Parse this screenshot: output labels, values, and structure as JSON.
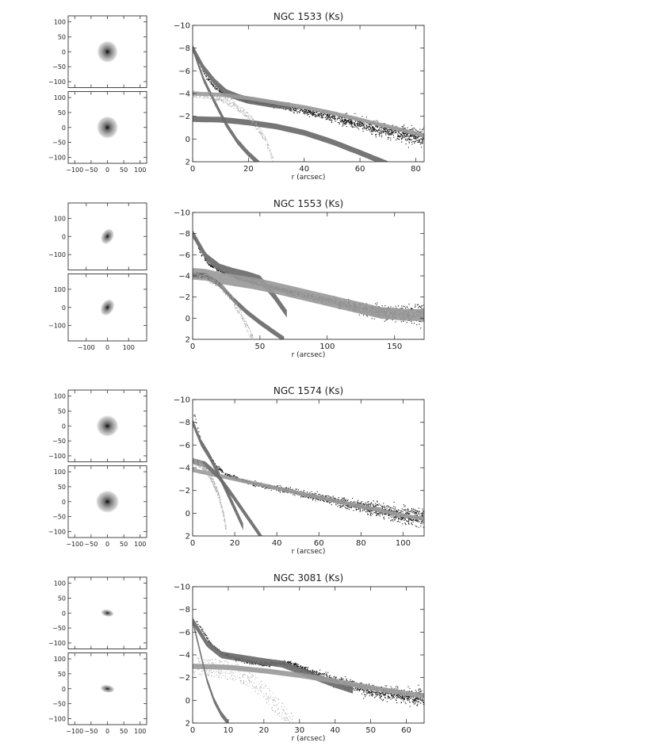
{
  "chart_data": [
    {
      "type": "scatter",
      "title": "NGC 1533 (Ks)",
      "xlabel": "r (arcsec)",
      "ylabel": "",
      "xlim": [
        0,
        83
      ],
      "ylim": [
        2,
        -10
      ],
      "xticks": [
        0,
        20,
        40,
        60,
        80
      ],
      "yticks": [
        -10,
        -8,
        -6,
        -4,
        -2,
        0,
        2
      ],
      "image_axis": {
        "lim": [
          -120,
          120
        ],
        "ticks": [
          -100,
          -50,
          0,
          50,
          100
        ]
      },
      "image_panels": [
        {
          "name": "observed image",
          "rx": 32,
          "ry": 37
        },
        {
          "name": "model image",
          "rx": 33,
          "ry": 38
        }
      ],
      "series": [
        {
          "kind": "data",
          "x": [
            1,
            3,
            5,
            8,
            12,
            18,
            25,
            32,
            40,
            48,
            56,
            64,
            72,
            78,
            82
          ],
          "y": [
            -7.6,
            -6.4,
            -5.4,
            -4.5,
            -3.9,
            -3.5,
            -3.2,
            -2.9,
            -2.5,
            -2.1,
            -1.6,
            -1.1,
            -0.6,
            -0.3,
            -0.2
          ]
        },
        {
          "kind": "band",
          "label": "",
          "x": [
            0,
            4,
            8,
            12,
            16,
            20,
            25,
            30,
            35
          ],
          "y": [
            -8.0,
            -6.2,
            -5.0,
            -4.1,
            -3.7,
            -3.4,
            -3.2,
            -3.0,
            -2.9
          ],
          "width": 0.6
        },
        {
          "kind": "band",
          "label": "",
          "x": [
            0,
            10,
            20,
            30,
            40,
            50,
            60,
            70,
            80,
            83
          ],
          "y": [
            -4.0,
            -3.9,
            -3.6,
            -3.2,
            -2.8,
            -2.3,
            -1.7,
            -1.1,
            -0.5,
            -0.3
          ],
          "width": 0.35
        },
        {
          "kind": "band",
          "label": "",
          "x": [
            0,
            10,
            20,
            30,
            40,
            50,
            60,
            70
          ],
          "y": [
            -1.75,
            -1.7,
            -1.45,
            -1.1,
            -0.55,
            0.25,
            1.2,
            2.2
          ],
          "width": 0.5
        },
        {
          "kind": "band",
          "label": "",
          "x": [
            0,
            4,
            8,
            12,
            16,
            20,
            24
          ],
          "y": [
            -8.0,
            -5.2,
            -3.2,
            -1.3,
            0.2,
            1.3,
            2.2
          ],
          "width": 0.5
        },
        {
          "kind": "dots",
          "label": "",
          "x": [
            0,
            6,
            12,
            16,
            20,
            24,
            27,
            29
          ],
          "y": [
            -4.0,
            -3.85,
            -3.4,
            -2.8,
            -2.0,
            -0.8,
            0.6,
            2.0
          ],
          "width": 0.6
        }
      ]
    },
    {
      "type": "scatter",
      "title": "NGC 1553 (Ks)",
      "xlabel": "r (arcsec)",
      "ylabel": "",
      "xlim": [
        0,
        172
      ],
      "ylim": [
        2,
        -10
      ],
      "xticks": [
        0,
        50,
        100,
        150
      ],
      "yticks": [
        -10,
        -8,
        -6,
        -4,
        -2,
        0,
        2
      ],
      "image_axis": {
        "lim": [
          -185,
          185
        ],
        "ticks": [
          -100,
          0,
          100
        ]
      },
      "image_panels": [
        {
          "name": "observed image",
          "rx": 28,
          "ry": 46,
          "rot": 30
        },
        {
          "name": "model image",
          "rx": 30,
          "ry": 49,
          "rot": 30
        }
      ],
      "series": [
        {
          "kind": "data",
          "x": [
            2,
            6,
            12,
            20,
            30,
            45,
            60,
            80,
            100,
            120,
            140,
            160,
            170
          ],
          "y": [
            -7.5,
            -6.1,
            -5.1,
            -4.5,
            -4.0,
            -3.4,
            -2.9,
            -2.3,
            -1.7,
            -1.1,
            -0.6,
            -0.4,
            -0.4
          ]
        },
        {
          "kind": "band",
          "label": "",
          "x": [
            0,
            10,
            20,
            30,
            40,
            50,
            60,
            70
          ],
          "y": [
            -8.0,
            -5.8,
            -4.8,
            -4.4,
            -4.1,
            -3.7,
            -2.2,
            -0.4
          ],
          "width": 0.7
        },
        {
          "kind": "band",
          "label": "",
          "x": [
            0,
            10,
            20,
            30,
            45,
            60,
            80,
            100,
            120,
            140,
            160,
            172
          ],
          "y": [
            -4.2,
            -4.1,
            -3.8,
            -3.6,
            -3.3,
            -2.9,
            -2.3,
            -1.7,
            -1.1,
            -0.5,
            -0.3,
            -0.3
          ],
          "width": 1.1
        },
        {
          "kind": "band",
          "label": "",
          "x": [
            0,
            10,
            20,
            30,
            40,
            50,
            60,
            68
          ],
          "y": [
            -4.1,
            -4.0,
            -3.2,
            -1.8,
            -0.6,
            0.4,
            1.3,
            2.0
          ],
          "width": 0.5
        },
        {
          "kind": "dots",
          "label": "",
          "x": [
            0,
            10,
            20,
            28,
            35,
            40,
            45
          ],
          "y": [
            -4.1,
            -3.9,
            -3.2,
            -2.0,
            -0.6,
            0.8,
            2.0
          ],
          "width": 0.7
        }
      ]
    },
    {
      "type": "scatter",
      "title": "NGC 1574 (Ks)",
      "xlabel": "r (arcsec)",
      "ylabel": "",
      "xlim": [
        0,
        110
      ],
      "ylim": [
        2,
        -10
      ],
      "xticks": [
        0,
        20,
        40,
        60,
        80,
        100
      ],
      "yticks": [
        -10,
        -8,
        -6,
        -4,
        -2,
        0,
        2
      ],
      "image_axis": {
        "lim": [
          -120,
          120
        ],
        "ticks": [
          -100,
          -50,
          0,
          50,
          100
        ]
      },
      "image_panels": [
        {
          "name": "observed image",
          "rx": 34,
          "ry": 36
        },
        {
          "name": "model image",
          "rx": 36,
          "ry": 38
        }
      ],
      "series": [
        {
          "kind": "data",
          "x": [
            1,
            4,
            8,
            12,
            16,
            22,
            30,
            40,
            50,
            60,
            70,
            80,
            90,
            100,
            108
          ],
          "y": [
            -8.5,
            -6.4,
            -5.0,
            -4.0,
            -3.4,
            -3.0,
            -2.6,
            -2.2,
            -1.8,
            -1.4,
            -1.0,
            -0.6,
            -0.2,
            0.2,
            0.4
          ]
        },
        {
          "kind": "band",
          "label": "",
          "x": [
            0,
            4,
            8,
            12,
            16,
            20,
            24
          ],
          "y": [
            -8.0,
            -6.2,
            -5.0,
            -3.6,
            -2.0,
            -0.4,
            1.2
          ],
          "width": 0.6
        },
        {
          "kind": "band",
          "label": "",
          "x": [
            0,
            10,
            20,
            30,
            40,
            50,
            60,
            70,
            80,
            90,
            100,
            110
          ],
          "y": [
            -3.8,
            -3.4,
            -3.0,
            -2.6,
            -2.2,
            -1.8,
            -1.4,
            -1.0,
            -0.6,
            -0.2,
            0.2,
            0.5
          ],
          "width": 0.35
        },
        {
          "kind": "band",
          "label": "",
          "x": [
            0,
            6,
            12,
            18,
            24,
            30,
            33
          ],
          "y": [
            -4.6,
            -4.3,
            -3.3,
            -1.8,
            -0.2,
            1.4,
            2.2
          ],
          "width": 0.5
        },
        {
          "kind": "dots",
          "label": "",
          "x": [
            0,
            4,
            8,
            12,
            14,
            16
          ],
          "y": [
            -4.6,
            -4.3,
            -3.4,
            -1.8,
            -0.4,
            1.6
          ],
          "width": 0.6
        }
      ]
    },
    {
      "type": "scatter",
      "title": "NGC 3081 (Ks)",
      "xlabel": "r (arcsec)",
      "ylabel": "",
      "xlim": [
        0,
        65
      ],
      "ylim": [
        2,
        -10
      ],
      "xticks": [
        0,
        10,
        20,
        30,
        40,
        50,
        60
      ],
      "yticks": [
        -10,
        -8,
        -6,
        -4,
        -2,
        0,
        2
      ],
      "image_axis": {
        "lim": [
          -120,
          120
        ],
        "ticks": [
          -100,
          -50,
          0,
          50,
          100
        ]
      },
      "image_panels": [
        {
          "name": "observed image",
          "rx": 20,
          "ry": 12,
          "rot": 10
        },
        {
          "name": "model image",
          "rx": 22,
          "ry": 13,
          "rot": 10
        }
      ],
      "series": [
        {
          "kind": "data",
          "x": [
            1,
            3,
            5,
            8,
            12,
            16,
            20,
            24,
            27,
            30,
            35,
            40,
            45,
            50,
            55,
            60,
            64
          ],
          "y": [
            -7.0,
            -6.0,
            -5.0,
            -4.2,
            -3.7,
            -3.4,
            -3.2,
            -3.3,
            -3.3,
            -2.9,
            -2.3,
            -1.8,
            -1.3,
            -0.9,
            -0.6,
            -0.4,
            -0.3
          ]
        },
        {
          "kind": "band",
          "label": "",
          "x": [
            0,
            4,
            8,
            12,
            16,
            20,
            25,
            30,
            35,
            40,
            45
          ],
          "y": [
            -7.0,
            -5.0,
            -4.0,
            -3.8,
            -3.6,
            -3.4,
            -3.2,
            -2.6,
            -2.0,
            -1.4,
            -0.9
          ],
          "width": 0.6
        },
        {
          "kind": "band",
          "label": "",
          "x": [
            0,
            10,
            20,
            30,
            40,
            50,
            60,
            65
          ],
          "y": [
            -3.0,
            -2.9,
            -2.6,
            -2.2,
            -1.7,
            -1.1,
            -0.6,
            -0.4
          ],
          "width": 0.45
        },
        {
          "kind": "band",
          "label": "",
          "x": [
            0,
            2,
            4,
            6,
            8,
            10
          ],
          "y": [
            -7.0,
            -4.4,
            -1.8,
            0.0,
            1.2,
            2.0
          ],
          "width": 0.5
        },
        {
          "kind": "dots",
          "label": "",
          "x": [
            0,
            8,
            14,
            18,
            21,
            24,
            26,
            28
          ],
          "y": [
            -3.0,
            -2.8,
            -2.3,
            -1.4,
            -0.4,
            0.6,
            1.4,
            2.0
          ],
          "width": 1.6
        }
      ]
    }
  ]
}
